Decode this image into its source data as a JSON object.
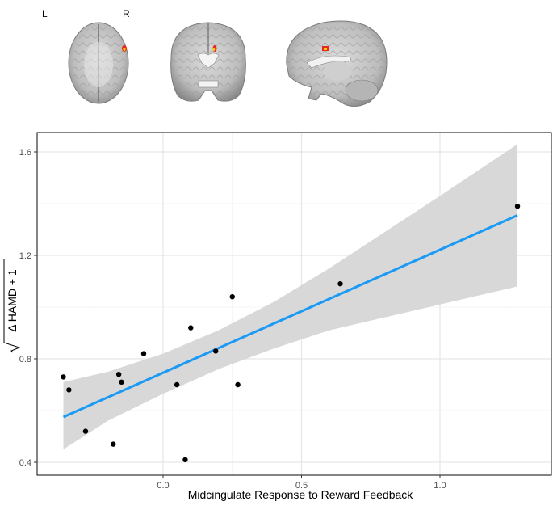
{
  "brain_panel": {
    "orientation_left": "L",
    "orientation_right": "R",
    "views": [
      "axial",
      "coronal",
      "sagittal"
    ],
    "activation_color_outer": "#e8281c",
    "activation_color_inner": "#ffcc00"
  },
  "chart_data": {
    "type": "scatter",
    "title": "",
    "xlabel": "Midcingulate Response to Reward Feedback",
    "ylabel": "√(Δ HAMD + 1)",
    "ylabel_parts": {
      "radicand": "Δ HAMD + 1"
    },
    "xlim": [
      -0.4,
      1.33
    ],
    "ylim": [
      0.37,
      1.68
    ],
    "x_ticks": [
      0.0,
      0.5,
      1.0
    ],
    "x_tick_labels": [
      "0.0",
      "0.5",
      "1.0"
    ],
    "y_ticks": [
      0.4,
      0.8,
      1.2,
      1.6
    ],
    "y_tick_labels": [
      "0.4",
      "0.8",
      "1.2",
      "1.6"
    ],
    "grid": true,
    "legend": null,
    "points": [
      {
        "x": -0.36,
        "y": 0.73
      },
      {
        "x": -0.34,
        "y": 0.68
      },
      {
        "x": -0.28,
        "y": 0.52
      },
      {
        "x": -0.18,
        "y": 0.47
      },
      {
        "x": -0.16,
        "y": 0.74
      },
      {
        "x": -0.15,
        "y": 0.71
      },
      {
        "x": -0.07,
        "y": 0.82
      },
      {
        "x": 0.05,
        "y": 0.7
      },
      {
        "x": 0.08,
        "y": 0.41
      },
      {
        "x": 0.1,
        "y": 0.92
      },
      {
        "x": 0.19,
        "y": 0.83
      },
      {
        "x": 0.25,
        "y": 1.04
      },
      {
        "x": 0.27,
        "y": 0.7
      },
      {
        "x": 0.64,
        "y": 1.09
      },
      {
        "x": 1.28,
        "y": 1.39
      }
    ],
    "fit_line": {
      "x": [
        -0.36,
        1.28
      ],
      "y": [
        0.575,
        1.355
      ],
      "color": "#1a9af5"
    },
    "confidence_band": {
      "x": [
        -0.36,
        -0.2,
        0.0,
        0.2,
        0.4,
        0.6,
        0.8,
        1.0,
        1.28
      ],
      "lower": [
        0.45,
        0.56,
        0.665,
        0.76,
        0.84,
        0.91,
        0.96,
        1.01,
        1.08
      ],
      "upper": [
        0.71,
        0.75,
        0.82,
        0.91,
        1.02,
        1.15,
        1.29,
        1.43,
        1.63
      ],
      "color": "#d6d6d6"
    },
    "point_color": "#000000"
  }
}
